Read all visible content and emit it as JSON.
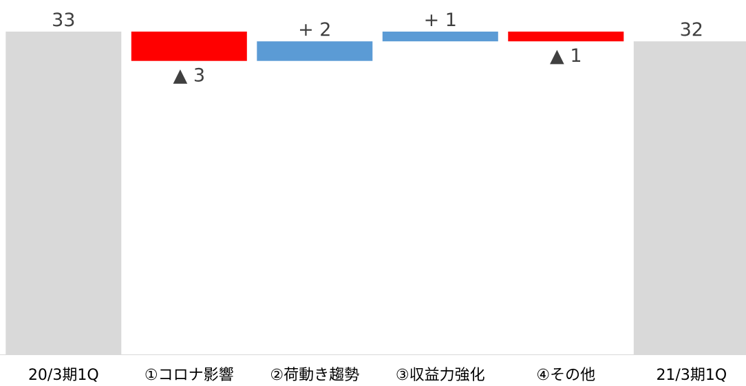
{
  "chart_data": {
    "type": "bar",
    "subtype": "waterfall",
    "categories": [
      "20/3期1Q",
      "①コロナ影響",
      "②荷動き趨勢",
      "③収益力強化",
      "④その他",
      "21/3期1Q"
    ],
    "values": [
      33,
      -3,
      2,
      1,
      -1,
      32
    ],
    "kinds": [
      "total",
      "delta",
      "delta",
      "delta",
      "delta",
      "total"
    ],
    "value_labels": [
      "33",
      "▲ 3",
      "+ 2",
      "+ 1",
      "▲ 1",
      "32"
    ],
    "ylim": [
      0,
      33
    ],
    "grid": false,
    "legend": "none",
    "title": "",
    "xlabel": "",
    "ylabel": "",
    "colors": {
      "total": "#d9d9d9",
      "decrease": "#ff0000",
      "increase": "#5b9bd5",
      "label": "#404040",
      "axis": "#d9d9d9"
    }
  }
}
